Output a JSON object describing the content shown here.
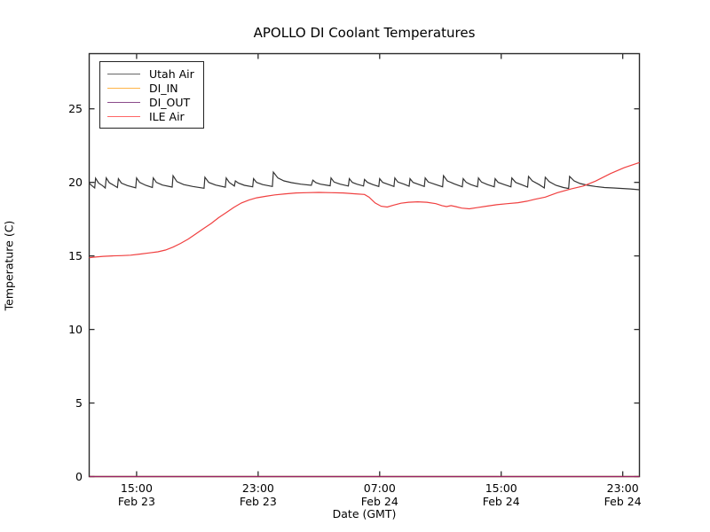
{
  "chart_data": {
    "type": "line",
    "title": "APOLLO DI Coolant Temperatures",
    "xlabel": "Date (GMT)",
    "ylabel": "Temperature (C)",
    "x_unit_note": "x values are hours elapsed since Feb 23 00:00 GMT",
    "xlim": [
      11.88,
      48.1
    ],
    "ylim": [
      0,
      28.75
    ],
    "grid": false,
    "legend_position": "upper left",
    "x_ticks": [
      {
        "t": 15,
        "time": "15:00",
        "date": "Feb 23"
      },
      {
        "t": 23,
        "time": "23:00",
        "date": "Feb 23"
      },
      {
        "t": 31,
        "time": "07:00",
        "date": "Feb 24"
      },
      {
        "t": 39,
        "time": "15:00",
        "date": "Feb 24"
      },
      {
        "t": 47,
        "time": "23:00",
        "date": "Feb 24"
      }
    ],
    "y_ticks": [
      0,
      5,
      10,
      15,
      20,
      25
    ],
    "series": [
      {
        "name": "Utah Air",
        "color": "#333333",
        "legend_color": "#666666",
        "points": [
          [
            11.88,
            19.95
          ],
          [
            12.05,
            19.78
          ],
          [
            12.24,
            19.62
          ],
          [
            12.3,
            20.28
          ],
          [
            12.5,
            19.95
          ],
          [
            12.75,
            19.78
          ],
          [
            12.94,
            19.62
          ],
          [
            13.0,
            20.3
          ],
          [
            13.2,
            19.98
          ],
          [
            13.5,
            19.8
          ],
          [
            13.74,
            19.65
          ],
          [
            13.8,
            20.25
          ],
          [
            14.0,
            19.95
          ],
          [
            14.4,
            19.78
          ],
          [
            14.94,
            19.63
          ],
          [
            15.0,
            20.3
          ],
          [
            15.2,
            20.0
          ],
          [
            15.6,
            19.8
          ],
          [
            16.04,
            19.65
          ],
          [
            16.1,
            20.3
          ],
          [
            16.3,
            20.0
          ],
          [
            16.7,
            19.82
          ],
          [
            17.34,
            19.68
          ],
          [
            17.4,
            20.45
          ],
          [
            17.65,
            20.05
          ],
          [
            18.1,
            19.85
          ],
          [
            18.7,
            19.72
          ],
          [
            19.44,
            19.6
          ],
          [
            19.5,
            20.35
          ],
          [
            19.75,
            20.0
          ],
          [
            20.2,
            19.82
          ],
          [
            20.84,
            19.67
          ],
          [
            20.9,
            20.3
          ],
          [
            21.1,
            20.0
          ],
          [
            21.44,
            19.75
          ],
          [
            21.5,
            20.1
          ],
          [
            21.7,
            19.95
          ],
          [
            22.1,
            19.8
          ],
          [
            22.64,
            19.7
          ],
          [
            22.7,
            20.25
          ],
          [
            22.9,
            20.0
          ],
          [
            23.3,
            19.85
          ],
          [
            23.94,
            19.72
          ],
          [
            24.0,
            20.7
          ],
          [
            24.3,
            20.3
          ],
          [
            24.7,
            20.1
          ],
          [
            25.2,
            19.98
          ],
          [
            25.8,
            19.88
          ],
          [
            26.5,
            19.8
          ],
          [
            26.6,
            20.15
          ],
          [
            26.8,
            19.98
          ],
          [
            27.1,
            19.88
          ],
          [
            27.74,
            19.77
          ],
          [
            27.8,
            20.3
          ],
          [
            28.0,
            20.02
          ],
          [
            28.4,
            19.88
          ],
          [
            28.94,
            19.75
          ],
          [
            29.0,
            20.25
          ],
          [
            29.2,
            20.0
          ],
          [
            29.5,
            19.88
          ],
          [
            29.94,
            19.75
          ],
          [
            30.0,
            20.2
          ],
          [
            30.2,
            20.0
          ],
          [
            30.55,
            19.85
          ],
          [
            30.94,
            19.72
          ],
          [
            31.0,
            20.25
          ],
          [
            31.2,
            20.0
          ],
          [
            31.6,
            19.85
          ],
          [
            31.94,
            19.72
          ],
          [
            32.0,
            20.3
          ],
          [
            32.2,
            20.02
          ],
          [
            32.6,
            19.88
          ],
          [
            32.94,
            19.74
          ],
          [
            33.0,
            20.25
          ],
          [
            33.2,
            20.0
          ],
          [
            33.6,
            19.85
          ],
          [
            33.94,
            19.72
          ],
          [
            34.0,
            20.3
          ],
          [
            34.2,
            20.02
          ],
          [
            34.7,
            19.85
          ],
          [
            35.14,
            19.7
          ],
          [
            35.2,
            20.45
          ],
          [
            35.45,
            20.1
          ],
          [
            35.9,
            19.9
          ],
          [
            36.44,
            19.7
          ],
          [
            36.5,
            20.25
          ],
          [
            36.7,
            20.0
          ],
          [
            37.0,
            19.85
          ],
          [
            37.44,
            19.7
          ],
          [
            37.5,
            20.3
          ],
          [
            37.7,
            20.02
          ],
          [
            38.1,
            19.85
          ],
          [
            38.54,
            19.7
          ],
          [
            38.6,
            20.25
          ],
          [
            38.8,
            20.0
          ],
          [
            39.2,
            19.85
          ],
          [
            39.64,
            19.7
          ],
          [
            39.7,
            20.3
          ],
          [
            39.95,
            20.0
          ],
          [
            40.4,
            19.82
          ],
          [
            40.74,
            19.68
          ],
          [
            40.8,
            20.4
          ],
          [
            41.05,
            20.1
          ],
          [
            41.5,
            19.85
          ],
          [
            41.84,
            19.62
          ],
          [
            41.9,
            20.35
          ],
          [
            42.15,
            20.05
          ],
          [
            42.6,
            19.8
          ],
          [
            43.1,
            19.65
          ],
          [
            43.44,
            19.58
          ],
          [
            43.5,
            20.4
          ],
          [
            43.8,
            20.1
          ],
          [
            44.2,
            19.92
          ],
          [
            44.7,
            19.8
          ],
          [
            45.2,
            19.72
          ],
          [
            45.8,
            19.65
          ],
          [
            46.4,
            19.62
          ],
          [
            47.0,
            19.58
          ],
          [
            47.5,
            19.55
          ],
          [
            48.1,
            19.5
          ]
        ]
      },
      {
        "name": "DI_IN",
        "color": "#ffa500",
        "legend_color": "#ffb347",
        "points": [
          [
            11.88,
            0
          ],
          [
            48.1,
            0
          ]
        ]
      },
      {
        "name": "DI_OUT",
        "color": "#800080",
        "legend_color": "#8a4b8a",
        "points": [
          [
            11.88,
            0
          ],
          [
            48.1,
            0
          ]
        ]
      },
      {
        "name": "ILE Air",
        "color": "#f04040",
        "legend_color": "#ff6666",
        "points": [
          [
            11.88,
            14.88
          ],
          [
            12.2,
            14.92
          ],
          [
            12.8,
            14.97
          ],
          [
            13.4,
            15.0
          ],
          [
            14.0,
            15.02
          ],
          [
            14.6,
            15.05
          ],
          [
            15.2,
            15.12
          ],
          [
            15.8,
            15.2
          ],
          [
            16.4,
            15.28
          ],
          [
            16.9,
            15.4
          ],
          [
            17.4,
            15.6
          ],
          [
            17.9,
            15.85
          ],
          [
            18.4,
            16.15
          ],
          [
            18.9,
            16.5
          ],
          [
            19.4,
            16.85
          ],
          [
            19.9,
            17.2
          ],
          [
            20.4,
            17.6
          ],
          [
            20.9,
            17.95
          ],
          [
            21.4,
            18.3
          ],
          [
            21.9,
            18.6
          ],
          [
            22.4,
            18.8
          ],
          [
            22.9,
            18.95
          ],
          [
            23.5,
            19.05
          ],
          [
            24.1,
            19.15
          ],
          [
            24.8,
            19.22
          ],
          [
            25.5,
            19.28
          ],
          [
            26.2,
            19.3
          ],
          [
            27.0,
            19.32
          ],
          [
            27.8,
            19.3
          ],
          [
            28.6,
            19.28
          ],
          [
            29.4,
            19.22
          ],
          [
            30.0,
            19.18
          ],
          [
            30.3,
            19.0
          ],
          [
            30.7,
            18.6
          ],
          [
            31.1,
            18.38
          ],
          [
            31.5,
            18.32
          ],
          [
            31.9,
            18.45
          ],
          [
            32.4,
            18.58
          ],
          [
            32.9,
            18.65
          ],
          [
            33.5,
            18.68
          ],
          [
            34.1,
            18.65
          ],
          [
            34.7,
            18.55
          ],
          [
            35.1,
            18.42
          ],
          [
            35.4,
            18.35
          ],
          [
            35.7,
            18.42
          ],
          [
            36.0,
            18.35
          ],
          [
            36.4,
            18.25
          ],
          [
            36.9,
            18.2
          ],
          [
            37.4,
            18.28
          ],
          [
            38.0,
            18.38
          ],
          [
            38.7,
            18.48
          ],
          [
            39.4,
            18.55
          ],
          [
            40.1,
            18.62
          ],
          [
            40.7,
            18.72
          ],
          [
            41.2,
            18.85
          ],
          [
            41.9,
            19.0
          ],
          [
            42.7,
            19.3
          ],
          [
            43.6,
            19.55
          ],
          [
            44.4,
            19.75
          ],
          [
            45.2,
            20.08
          ],
          [
            46.2,
            20.6
          ],
          [
            47.1,
            21.0
          ],
          [
            48.1,
            21.35
          ]
        ]
      }
    ]
  }
}
